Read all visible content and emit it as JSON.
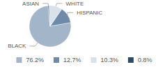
{
  "chart_data": {
    "type": "pie",
    "categories": [
      "BLACK",
      "HISPANIC",
      "WHITE",
      "ASIAN"
    ],
    "values": [
      76.2,
      12.7,
      10.3,
      0.8
    ],
    "value_labels": [
      "76.2%",
      "12.7%",
      "10.3%",
      "0.8%"
    ],
    "colors": [
      "#a3b5c8",
      "#6f8aa8",
      "#d9e1ea",
      "#2e4b68"
    ],
    "legend": "bottom"
  }
}
